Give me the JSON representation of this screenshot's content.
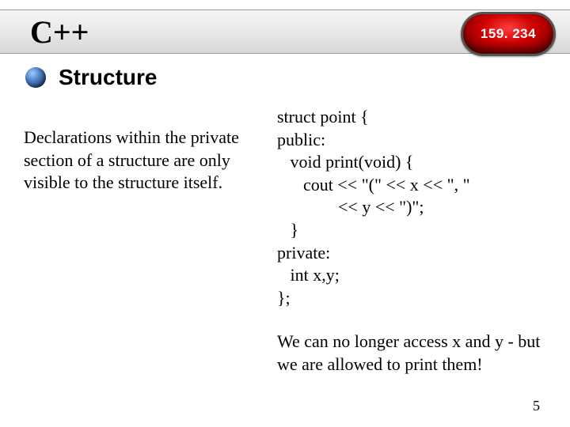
{
  "header": {
    "title": "C++",
    "badge": "159. 234",
    "background_gradient": [
      "#f5f5f5",
      "#e8e8e8",
      "#d8d8d8"
    ],
    "badge_colors": {
      "center": "#ff4040",
      "mid": "#d00000",
      "edge": "#550000",
      "border": "#555555",
      "text": "#ffffff"
    }
  },
  "section": {
    "title": "Structure",
    "bullet_gradient": [
      "#a0c8ff",
      "#4a7fc0",
      "#1e3a6e",
      "#0a1a3a"
    ]
  },
  "left": {
    "text": "Declarations within the private section of a structure are only visible to the structure itself."
  },
  "code": {
    "l1": "struct point {",
    "l2": "public:",
    "l3": "   void print(void) {",
    "l4": "      cout << \"(\" << x << \", \"",
    "l5": "              << y << \")\";",
    "l6": "   }",
    "l7": "private:",
    "l8": "   int x,y;",
    "l9": "};"
  },
  "footnote": {
    "text": "We can no longer access x and y - but we are allowed to print them!"
  },
  "page": {
    "number": "5"
  },
  "typography": {
    "header_title_fontsize": 40,
    "section_title_fontsize": 28,
    "body_fontsize": 22,
    "page_num_fontsize": 18,
    "body_font": "Times New Roman",
    "heading_font": "Arial"
  },
  "colors": {
    "background": "#ffffff",
    "text": "#000000"
  }
}
